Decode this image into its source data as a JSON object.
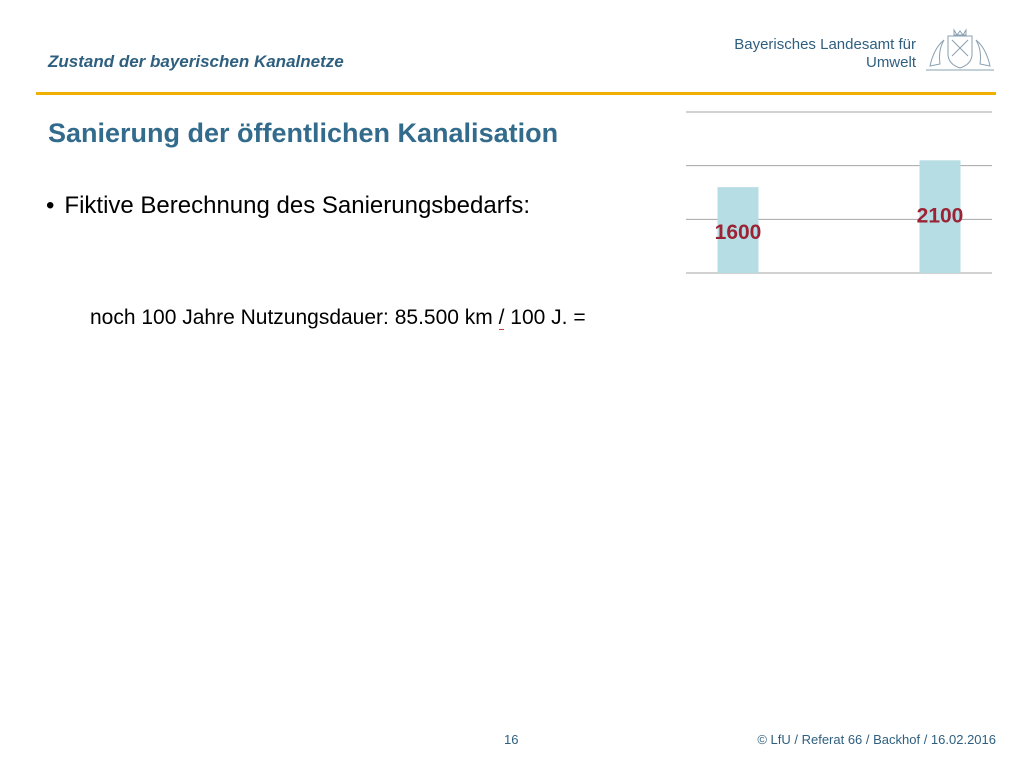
{
  "header": {
    "title": "Zustand der bayerischen Kanalnetze",
    "agency_line1": "Bayerisches Landesamt für",
    "agency_line2": "Umwelt"
  },
  "slide": {
    "title": "Sanierung der öffentlichen Kanalisation",
    "bullet_symbol": "•",
    "bullet": "Fiktive Berechnung des Sanierungsbedarfs:",
    "calc_part1": "noch 100 Jahre Nutzungsdauer: 85.500 km",
    "calc_slash": "/",
    "calc_part2": "100 J. ="
  },
  "chart_data": {
    "type": "bar",
    "categories": [
      "",
      ""
    ],
    "values": [
      1600,
      2100
    ],
    "data_labels": [
      "1600",
      "2100"
    ],
    "ylim": [
      0,
      3000
    ],
    "grid": true,
    "bar_color": "#b6dde3",
    "label_color": "#9b2335"
  },
  "footer": {
    "page": "16",
    "copyright": "© LfU / Referat 66 / Backhof / 16.02.2016"
  },
  "colors": {
    "accent_rule": "#f0b000",
    "title": "#336b8c",
    "header": "#2f5f7f"
  },
  "icons": {
    "crest": "bavarian-coat-of-arms-icon"
  }
}
